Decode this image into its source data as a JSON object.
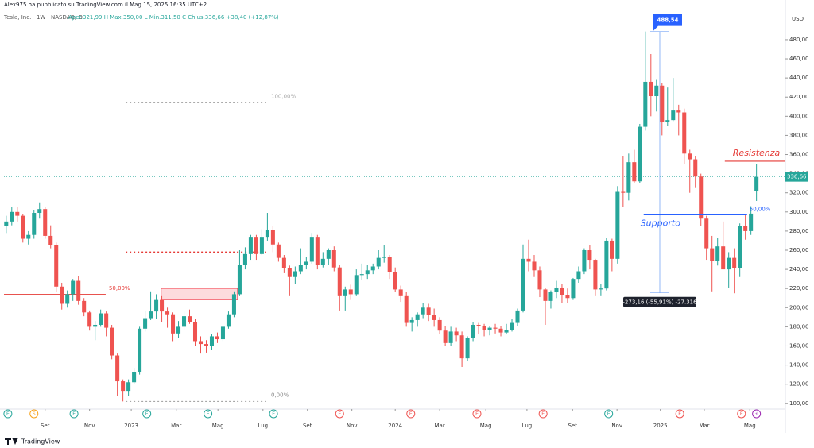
{
  "header": {
    "published": "Alex975 ha pubblicato su TradingView.com il Mag 15, 2025 16:35 UTC+2",
    "symbol": "Tesla, Inc. · 1W · NASDAQ, O",
    "ohlc": "Aper.321,99  H  Max.350,00  L  Min.311,50  C  Chius.336,66  +38,40 (+12,87%)",
    "brand": "TradingView"
  },
  "chart_data": {
    "type": "candlestick",
    "currency": "USD",
    "up_color": "#26a69a",
    "down_color": "#ef5350",
    "ylim": [
      94,
      509
    ],
    "xlim": [
      -0.4,
      140.2
    ],
    "yticks": [
      {
        "value": 100,
        "label": "100,00"
      },
      {
        "value": 120,
        "label": "120,00"
      },
      {
        "value": 140,
        "label": "140,00"
      },
      {
        "value": 160,
        "label": "160,00"
      },
      {
        "value": 180,
        "label": "180,00"
      },
      {
        "value": 200,
        "label": "200,00"
      },
      {
        "value": 220,
        "label": "220,00"
      },
      {
        "value": 240,
        "label": "240,00"
      },
      {
        "value": 260,
        "label": "260,00"
      },
      {
        "value": 280,
        "label": "280,00"
      },
      {
        "value": 300,
        "label": "300,00"
      },
      {
        "value": 320,
        "label": "320,00"
      },
      {
        "value": 340,
        "label": "340,00"
      },
      {
        "value": 360,
        "label": "360,00"
      },
      {
        "value": 380,
        "label": "380,00"
      },
      {
        "value": 400,
        "label": "400,00"
      },
      {
        "value": 420,
        "label": "420,00"
      },
      {
        "value": 440,
        "label": "440,00"
      },
      {
        "value": 460,
        "label": "460,00"
      },
      {
        "value": 480,
        "label": "480,00"
      }
    ],
    "xticks": [
      {
        "value": 7,
        "label": "Set"
      },
      {
        "value": 15,
        "label": "Nov"
      },
      {
        "value": 22.5,
        "label": "2023"
      },
      {
        "value": 30.6,
        "label": "Mar"
      },
      {
        "value": 38.1,
        "label": "Mag"
      },
      {
        "value": 46.2,
        "label": "Lug"
      },
      {
        "value": 54.2,
        "label": "Set"
      },
      {
        "value": 62.2,
        "label": "Nov"
      },
      {
        "value": 70,
        "label": "2024"
      },
      {
        "value": 78,
        "label": "Mar"
      },
      {
        "value": 86.3,
        "label": "Mag"
      },
      {
        "value": 93.7,
        "label": "Lug"
      },
      {
        "value": 101.9,
        "label": "Set"
      },
      {
        "value": 109.9,
        "label": "Nov"
      },
      {
        "value": 117.7,
        "label": "2025"
      },
      {
        "value": 125.6,
        "label": "Mar"
      },
      {
        "value": 133.8,
        "label": "Mag"
      }
    ],
    "last_price": {
      "value": 336.66,
      "label": "336,66"
    },
    "candles": [
      [
        285,
        296,
        278,
        290
      ],
      [
        290,
        305,
        286,
        300
      ],
      [
        300,
        305,
        290,
        296
      ],
      [
        296,
        298,
        268,
        272
      ],
      [
        272,
        280,
        266,
        276
      ],
      [
        276,
        302,
        272,
        299
      ],
      [
        299,
        310,
        293,
        303
      ],
      [
        303,
        305,
        272,
        275
      ],
      [
        275,
        286,
        262,
        265
      ],
      [
        265,
        268,
        216,
        222
      ],
      [
        222,
        226,
        198,
        204
      ],
      [
        204,
        218,
        200,
        214
      ],
      [
        214,
        230,
        207,
        228
      ],
      [
        228,
        233,
        203,
        207
      ],
      [
        207,
        210,
        191,
        195
      ],
      [
        195,
        197,
        176,
        180
      ],
      [
        180,
        186,
        166,
        182
      ],
      [
        182,
        198,
        180,
        194
      ],
      [
        194,
        196,
        170,
        179
      ],
      [
        179,
        182,
        146,
        150
      ],
      [
        150,
        152,
        108,
        123
      ],
      [
        123,
        125,
        102,
        113
      ],
      [
        113,
        125,
        108,
        122
      ],
      [
        122,
        137,
        120,
        133
      ],
      [
        133,
        180,
        130,
        178
      ],
      [
        178,
        197,
        175,
        189
      ],
      [
        189,
        217,
        187,
        196
      ],
      [
        196,
        214,
        188,
        208
      ],
      [
        208,
        212,
        185,
        196
      ],
      [
        196,
        200,
        179,
        193
      ],
      [
        193,
        195,
        165,
        173
      ],
      [
        173,
        186,
        168,
        180
      ],
      [
        180,
        196,
        177,
        191
      ],
      [
        191,
        198,
        183,
        185
      ],
      [
        185,
        188,
        160,
        165
      ],
      [
        165,
        170,
        152,
        162
      ],
      [
        162,
        166,
        153,
        160
      ],
      [
        160,
        172,
        156,
        170
      ],
      [
        170,
        174,
        163,
        167
      ],
      [
        167,
        181,
        165,
        180
      ],
      [
        180,
        196,
        178,
        193
      ],
      [
        193,
        217,
        190,
        214
      ],
      [
        214,
        260,
        212,
        245
      ],
      [
        245,
        263,
        240,
        256
      ],
      [
        256,
        276,
        250,
        274
      ],
      [
        274,
        276,
        250,
        256
      ],
      [
        256,
        282,
        255,
        274
      ],
      [
        274,
        299,
        270,
        281
      ],
      [
        281,
        285,
        258,
        266
      ],
      [
        266,
        268,
        248,
        252
      ],
      [
        252,
        255,
        236,
        241
      ],
      [
        241,
        244,
        212,
        232
      ],
      [
        232,
        243,
        225,
        238
      ],
      [
        238,
        262,
        235,
        245
      ],
      [
        245,
        253,
        240,
        248
      ],
      [
        248,
        278,
        246,
        274
      ],
      [
        274,
        276,
        240,
        245
      ],
      [
        245,
        258,
        242,
        251
      ],
      [
        251,
        262,
        245,
        260
      ],
      [
        260,
        264,
        238,
        242
      ],
      [
        242,
        245,
        197,
        212
      ],
      [
        212,
        222,
        197,
        219
      ],
      [
        219,
        224,
        208,
        214
      ],
      [
        214,
        240,
        212,
        234
      ],
      [
        234,
        246,
        229,
        235
      ],
      [
        235,
        245,
        230,
        239
      ],
      [
        239,
        246,
        235,
        243
      ],
      [
        243,
        260,
        240,
        252
      ],
      [
        252,
        265,
        247,
        253
      ],
      [
        253,
        255,
        230,
        237
      ],
      [
        237,
        242,
        216,
        219
      ],
      [
        219,
        223,
        206,
        212
      ],
      [
        212,
        216,
        180,
        184
      ],
      [
        184,
        190,
        175,
        187
      ],
      [
        187,
        195,
        180,
        193
      ],
      [
        193,
        205,
        189,
        200
      ],
      [
        200,
        204,
        186,
        192
      ],
      [
        192,
        199,
        180,
        187
      ],
      [
        187,
        190,
        172,
        176
      ],
      [
        176,
        181,
        160,
        163
      ],
      [
        163,
        180,
        160,
        175
      ],
      [
        175,
        179,
        165,
        171
      ],
      [
        171,
        175,
        138,
        147
      ],
      [
        147,
        170,
        144,
        168
      ],
      [
        168,
        185,
        165,
        182
      ],
      [
        182,
        184,
        172,
        181
      ],
      [
        181,
        183,
        170,
        177
      ],
      [
        177,
        181,
        171,
        179
      ],
      [
        179,
        183,
        173,
        178
      ],
      [
        178,
        181,
        170,
        174
      ],
      [
        174,
        183,
        172,
        177
      ],
      [
        177,
        188,
        175,
        184
      ],
      [
        184,
        199,
        181,
        197
      ],
      [
        197,
        266,
        195,
        251
      ],
      [
        251,
        271,
        238,
        248
      ],
      [
        248,
        255,
        232,
        239
      ],
      [
        239,
        243,
        211,
        219
      ],
      [
        219,
        221,
        182,
        207
      ],
      [
        207,
        218,
        199,
        216
      ],
      [
        216,
        228,
        210,
        221
      ],
      [
        221,
        225,
        205,
        213
      ],
      [
        213,
        220,
        205,
        210
      ],
      [
        210,
        231,
        208,
        230
      ],
      [
        230,
        243,
        226,
        238
      ],
      [
        238,
        262,
        235,
        260
      ],
      [
        260,
        265,
        240,
        250
      ],
      [
        250,
        251,
        212,
        219
      ],
      [
        219,
        225,
        212,
        220
      ],
      [
        220,
        273,
        218,
        270
      ],
      [
        270,
        272,
        238,
        251
      ],
      [
        251,
        327,
        246,
        321
      ],
      [
        321,
        358,
        305,
        320
      ],
      [
        320,
        361,
        312,
        352
      ],
      [
        352,
        365,
        330,
        332
      ],
      [
        332,
        392,
        330,
        389
      ],
      [
        389,
        488.54,
        385,
        436
      ],
      [
        436,
        465,
        400,
        421
      ],
      [
        421,
        438,
        405,
        432
      ],
      [
        432,
        435,
        380,
        394
      ],
      [
        394,
        430,
        390,
        396
      ],
      [
        396,
        440,
        395,
        406
      ],
      [
        406,
        412,
        380,
        404
      ],
      [
        404,
        408,
        350,
        361
      ],
      [
        361,
        365,
        320,
        355
      ],
      [
        355,
        358,
        325,
        337
      ],
      [
        337,
        340,
        285,
        293
      ],
      [
        293,
        296,
        250,
        262
      ],
      [
        262,
        275,
        217,
        249
      ],
      [
        249,
        273,
        244,
        264
      ],
      [
        264,
        290,
        240,
        240
      ],
      [
        240,
        258,
        221,
        252
      ],
      [
        252,
        262,
        215,
        241
      ],
      [
        241,
        288,
        232,
        285
      ],
      [
        285,
        297,
        271,
        280
      ],
      [
        280,
        306,
        276,
        298.26
      ],
      [
        321.99,
        350,
        311.5,
        336.66
      ]
    ],
    "drawings": {
      "fib_top": {
        "price": 414,
        "x": [
          21.5,
          46.8
        ],
        "label": "100,00%"
      },
      "fib_bottom": {
        "price": 102,
        "x": [
          21.5,
          46.8
        ],
        "label": "0,00%"
      },
      "fib_mid": {
        "price": 258,
        "x": [
          21.5,
          46.8
        ]
      },
      "level_50": {
        "price": 213.7,
        "x": [
          -0.4,
          17.9
        ],
        "label": "50,00%"
      },
      "zone": {
        "top": 220,
        "bottom": 208,
        "x": [
          27.9,
          41.6
        ]
      },
      "support": {
        "price": 297,
        "x": [
          114.7,
          133.3
        ],
        "label": "Supporto",
        "level_label": "50,00%"
      },
      "resistance": {
        "price": 353,
        "x": [
          129.3,
          140.2
        ],
        "label": "Resistenza"
      },
      "measure": {
        "x": 117.6,
        "from": 488.54,
        "to": 215.4,
        "top_label": "488,54",
        "label": "-273,16 (-55,91%) -27.316"
      }
    },
    "events": [
      {
        "x": 0.3,
        "label": "E",
        "color": "#26a69a"
      },
      {
        "x": 5,
        "label": "S",
        "color": "#f7a21b"
      },
      {
        "x": 12.2,
        "label": "E",
        "color": "#26a69a"
      },
      {
        "x": 25.3,
        "label": "E",
        "color": "#26a69a"
      },
      {
        "x": 36.3,
        "label": "E",
        "color": "#26a69a"
      },
      {
        "x": 48.1,
        "label": "E",
        "color": "#26a69a"
      },
      {
        "x": 60,
        "label": "E",
        "color": "#ef5350"
      },
      {
        "x": 72.8,
        "label": "E",
        "color": "#ef5350"
      },
      {
        "x": 84.7,
        "label": "E",
        "color": "#ef5350"
      },
      {
        "x": 96.6,
        "label": "E",
        "color": "#ef5350"
      },
      {
        "x": 108.4,
        "label": "E",
        "color": "#26a69a"
      },
      {
        "x": 121.2,
        "label": "E",
        "color": "#ef5350"
      },
      {
        "x": 132.3,
        "label": "E",
        "color": "#ef5350"
      },
      {
        "x": 135,
        "label": "⚡",
        "color": "#9c27b0"
      }
    ]
  }
}
